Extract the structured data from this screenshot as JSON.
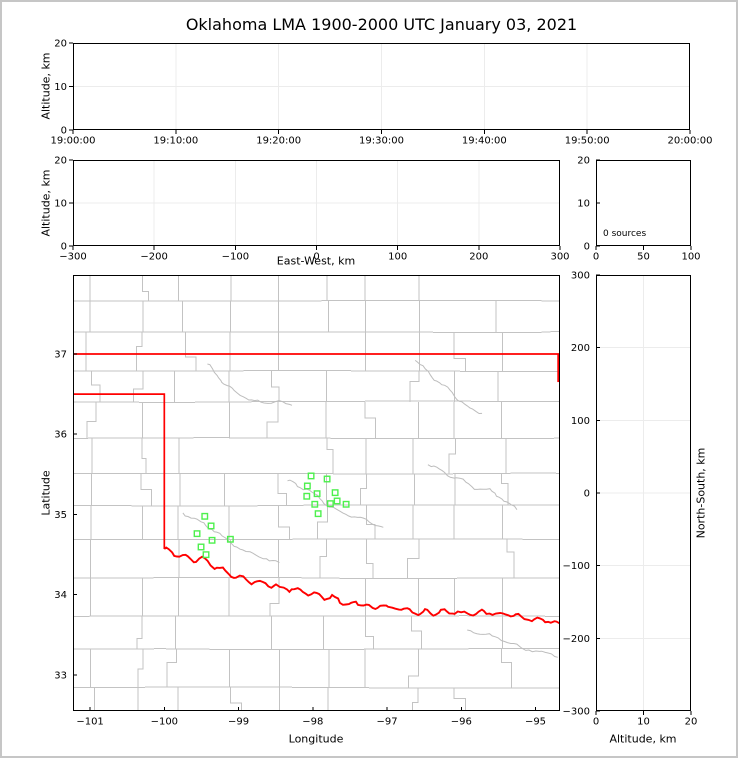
{
  "figure": {
    "title": "Oklahoma LMA 1900-2000 UTC January 03, 2021",
    "background": "#ffffff",
    "border_color": "#c6c6c6"
  },
  "chart_data": [
    {
      "id": "time_height_panel",
      "type": "scatter",
      "xlabel": "",
      "ylabel": "Altitude, km",
      "xticks": {
        "values": [
          0,
          1,
          2,
          3,
          4,
          5,
          6
        ],
        "labels": [
          "19:00:00",
          "19:10:00",
          "19:20:00",
          "19:30:00",
          "19:40:00",
          "19:50:00",
          "20:00:00"
        ]
      },
      "yticks": {
        "values": [
          0,
          10,
          20
        ],
        "labels": [
          "0",
          "10",
          "20"
        ]
      },
      "xlim": [
        0,
        6
      ],
      "ylim": [
        0,
        20
      ],
      "points": []
    },
    {
      "id": "east_west_height_panel",
      "type": "scatter",
      "xlabel": "East-West, km",
      "ylabel": "Altitude, km",
      "xticks": {
        "values": [
          -300,
          -200,
          -100,
          0,
          100,
          200,
          300
        ],
        "labels": [
          "−300",
          "−200",
          "−100",
          "0",
          "100",
          "200",
          "300"
        ]
      },
      "yticks": {
        "values": [
          0,
          10,
          20
        ],
        "labels": [
          "0",
          "10",
          "20"
        ]
      },
      "xlim": [
        -300,
        300
      ],
      "ylim": [
        0,
        20
      ],
      "points": []
    },
    {
      "id": "altitude_histogram_panel",
      "type": "line",
      "xlabel": "",
      "ylabel": "",
      "annotation": "0 sources",
      "xticks": {
        "values": [
          0,
          50,
          100
        ],
        "labels": [
          "0",
          "50",
          "100"
        ]
      },
      "yticks": {
        "values": [
          0,
          10,
          20
        ],
        "labels": [
          "0",
          "10",
          "20"
        ]
      },
      "xlim": [
        0,
        100
      ],
      "ylim": [
        0,
        20
      ],
      "points": []
    },
    {
      "id": "plan_view_map_panel",
      "type": "scatter",
      "xlabel": "Longitude",
      "ylabel": "Latitude",
      "xticks": {
        "values": [
          -101,
          -100,
          -99,
          -98,
          -97,
          -96,
          -95
        ],
        "labels": [
          "−101",
          "−100",
          "−99",
          "−98",
          "−97",
          "−96",
          "−95"
        ]
      },
      "yticks": {
        "values": [
          33,
          34,
          35,
          36,
          37
        ],
        "labels": [
          "33",
          "34",
          "35",
          "36",
          "37"
        ]
      },
      "xlim": [
        -101.23,
        -94.67
      ],
      "ylim": [
        32.551,
        37.984
      ],
      "marker": {
        "shape": "open-square",
        "color": "#4df04d",
        "size": 5.5
      },
      "sources_lon_lat": [
        [
          -99.455,
          34.977
        ],
        [
          -99.37,
          34.857
        ],
        [
          -99.559,
          34.761
        ],
        [
          -99.357,
          34.678
        ],
        [
          -99.11,
          34.691
        ],
        [
          -99.505,
          34.595
        ],
        [
          -99.438,
          34.499
        ],
        [
          -98.023,
          35.48
        ],
        [
          -97.807,
          35.442
        ],
        [
          -98.073,
          35.355
        ],
        [
          -97.942,
          35.259
        ],
        [
          -98.081,
          35.227
        ],
        [
          -97.699,
          35.272
        ],
        [
          -97.672,
          35.168
        ],
        [
          -97.973,
          35.127
        ],
        [
          -97.763,
          35.135
        ],
        [
          -97.551,
          35.127
        ],
        [
          -97.928,
          35.01
        ]
      ],
      "state_border_color": "#ff0000",
      "county_line_color": "#c3c3c3",
      "state_border_segments": [
        {
          "wiggle": false,
          "points": [
            [
              -101.23,
              37.0
            ],
            [
              -94.67,
              37.0
            ]
          ]
        },
        {
          "wiggle": false,
          "points": [
            [
              -94.695,
              37.0
            ],
            [
              -94.695,
              36.65
            ]
          ]
        },
        {
          "wiggle": false,
          "points": [
            [
              -101.23,
              36.5
            ],
            [
              -100.0,
              36.5
            ],
            [
              -100.0,
              34.57
            ]
          ]
        },
        {
          "wiggle": true,
          "points": [
            [
              -100.0,
              34.57
            ],
            [
              -99.9,
              34.53
            ],
            [
              -99.79,
              34.48
            ],
            [
              -99.68,
              34.46
            ],
            [
              -99.57,
              34.42
            ],
            [
              -99.49,
              34.45
            ],
            [
              -99.41,
              34.41
            ],
            [
              -99.33,
              34.35
            ],
            [
              -99.25,
              34.33
            ],
            [
              -99.14,
              34.27
            ],
            [
              -99.03,
              34.22
            ],
            [
              -98.93,
              34.2
            ],
            [
              -98.82,
              34.17
            ],
            [
              -98.71,
              34.15
            ],
            [
              -98.6,
              34.13
            ],
            [
              -98.49,
              34.1
            ],
            [
              -98.39,
              34.07
            ],
            [
              -98.28,
              34.08
            ],
            [
              -98.17,
              34.05
            ],
            [
              -98.06,
              34.02
            ],
            [
              -97.95,
              34.0
            ],
            [
              -97.85,
              33.96
            ],
            [
              -97.74,
              33.97
            ],
            [
              -97.63,
              33.92
            ],
            [
              -97.52,
              33.87
            ],
            [
              -97.42,
              33.91
            ],
            [
              -97.31,
              33.87
            ],
            [
              -97.2,
              33.83
            ],
            [
              -97.09,
              33.87
            ],
            [
              -96.98,
              33.83
            ],
            [
              -96.88,
              33.85
            ],
            [
              -96.77,
              33.82
            ],
            [
              -96.66,
              33.79
            ],
            [
              -96.55,
              33.76
            ],
            [
              -96.45,
              33.8
            ],
            [
              -96.34,
              33.76
            ],
            [
              -96.23,
              33.79
            ],
            [
              -96.12,
              33.79
            ],
            [
              -96.01,
              33.76
            ],
            [
              -95.91,
              33.77
            ],
            [
              -95.8,
              33.76
            ],
            [
              -95.69,
              33.79
            ],
            [
              -95.58,
              33.77
            ],
            [
              -95.48,
              33.75
            ],
            [
              -95.37,
              33.76
            ],
            [
              -95.26,
              33.74
            ],
            [
              -95.15,
              33.71
            ],
            [
              -95.05,
              33.7
            ],
            [
              -94.94,
              33.68
            ],
            [
              -94.83,
              33.68
            ],
            [
              -94.75,
              33.65
            ],
            [
              -94.67,
              33.64
            ]
          ]
        }
      ],
      "rivers_lon_lat": [
        [
          [
            -99.42,
            36.875
          ],
          [
            -99.29,
            36.75
          ],
          [
            -99.195,
            36.61
          ],
          [
            -99.02,
            36.53
          ],
          [
            -98.86,
            36.43
          ],
          [
            -98.66,
            36.39
          ],
          [
            -98.47,
            36.41
          ],
          [
            -98.28,
            36.36
          ]
        ],
        [
          [
            -98.34,
            35.42
          ],
          [
            -98.2,
            35.36
          ],
          [
            -98.05,
            35.3
          ],
          [
            -97.93,
            35.22
          ],
          [
            -97.82,
            35.12
          ],
          [
            -97.68,
            35.05
          ],
          [
            -97.52,
            34.99
          ],
          [
            -97.36,
            34.95
          ],
          [
            -97.2,
            34.89
          ],
          [
            -97.05,
            34.84
          ]
        ],
        [
          [
            -99.75,
            35.02
          ],
          [
            -99.6,
            34.95
          ],
          [
            -99.47,
            34.88
          ],
          [
            -99.33,
            34.8
          ],
          [
            -99.22,
            34.72
          ],
          [
            -99.1,
            34.65
          ],
          [
            -98.98,
            34.58
          ],
          [
            -98.85,
            34.52
          ],
          [
            -98.72,
            34.48
          ],
          [
            -98.58,
            34.44
          ],
          [
            -98.45,
            34.4
          ]
        ],
        [
          [
            -96.62,
            36.92
          ],
          [
            -96.45,
            36.78
          ],
          [
            -96.33,
            36.66
          ],
          [
            -96.15,
            36.55
          ],
          [
            -96.02,
            36.42
          ],
          [
            -95.88,
            36.32
          ],
          [
            -95.72,
            36.26
          ]
        ],
        [
          [
            -96.45,
            35.62
          ],
          [
            -96.22,
            35.52
          ],
          [
            -96.02,
            35.44
          ],
          [
            -95.82,
            35.33
          ],
          [
            -95.62,
            35.3
          ],
          [
            -95.42,
            35.18
          ],
          [
            -95.25,
            35.06
          ]
        ],
        [
          [
            -95.92,
            33.56
          ],
          [
            -95.66,
            33.5
          ],
          [
            -95.42,
            33.44
          ],
          [
            -95.18,
            33.32
          ],
          [
            -94.95,
            33.3
          ],
          [
            -94.7,
            33.22
          ]
        ]
      ]
    },
    {
      "id": "ns_altitude_panel",
      "type": "scatter",
      "xlabel": "Altitude, km",
      "ylabel_right": "North-South, km",
      "xticks": {
        "values": [
          0,
          10,
          20
        ],
        "labels": [
          "0",
          "10",
          "20"
        ]
      },
      "yticks": {
        "values": [
          -300,
          -200,
          -100,
          0,
          100,
          200,
          300
        ],
        "labels": [
          "−300",
          "−200",
          "−100",
          "0",
          "100",
          "200",
          "300"
        ]
      },
      "xlim": [
        0,
        20
      ],
      "ylim": [
        -300,
        300
      ],
      "points": []
    }
  ]
}
